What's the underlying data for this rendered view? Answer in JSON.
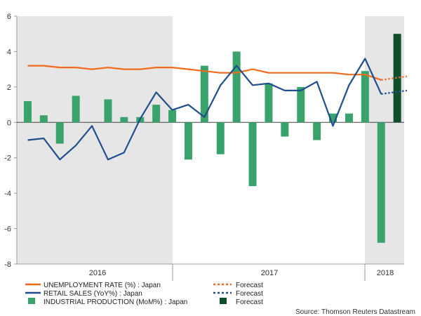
{
  "chart_data": {
    "type": "bar+line",
    "ylim": [
      -8,
      6
    ],
    "yticks": [
      6,
      4,
      2,
      0,
      -2,
      -4,
      -6,
      -8
    ],
    "year_labels": [
      "2016",
      "2017",
      "2018"
    ],
    "colors": {
      "unemployment": "#f26b1d",
      "retail": "#1f4e8c",
      "industrial": "#3aa36c",
      "industrial_forecast": "#0f4d2c",
      "shade": "#e6e6e6"
    },
    "series": [
      {
        "name": "UNEMPLOYMENT RATE (%) : Japan",
        "values": [
          3.2,
          3.2,
          3.1,
          3.1,
          3.0,
          3.1,
          3.0,
          3.0,
          3.1,
          3.1,
          3.0,
          2.9,
          2.8,
          2.8,
          3.0,
          2.8,
          2.8,
          2.8,
          2.8,
          2.8,
          2.7,
          2.7,
          2.4
        ],
        "forecast": [
          2.4,
          2.5,
          2.6
        ]
      },
      {
        "name": "RETAIL SALES (YoY%) : Japan",
        "values": [
          -1.0,
          -0.9,
          -2.1,
          -1.3,
          -0.2,
          -2.1,
          -1.7,
          0.2,
          1.7,
          0.7,
          1.0,
          0.3,
          2.1,
          3.2,
          2.1,
          2.2,
          1.8,
          1.8,
          2.3,
          -0.2,
          2.1,
          3.6,
          1.6
        ],
        "forecast": [
          1.6,
          1.7,
          1.8
        ]
      },
      {
        "name": "INDUSTRIAL PRODUCTION (MoM%) : Japan",
        "values": [
          1.2,
          0.4,
          -1.2,
          1.5,
          0,
          1.3,
          0.3,
          0.3,
          1.0,
          0.7,
          -2.1,
          3.2,
          -1.8,
          4.0,
          -3.6,
          2.2,
          -0.8,
          2.0,
          -1.0,
          0.5,
          0.5,
          2.9,
          -6.8
        ],
        "forecast": [
          5.0
        ]
      }
    ],
    "legend": [
      {
        "label": "UNEMPLOYMENT RATE (%) : Japan",
        "forecast_label": "Forecast"
      },
      {
        "label": "RETAIL SALES (YoY%) : Japan",
        "forecast_label": "Forecast"
      },
      {
        "label": "INDUSTRIAL PRODUCTION (MoM%) : Japan",
        "forecast_label": "Forecast"
      }
    ],
    "source": "Source: Thomson Reuters Datastream"
  }
}
